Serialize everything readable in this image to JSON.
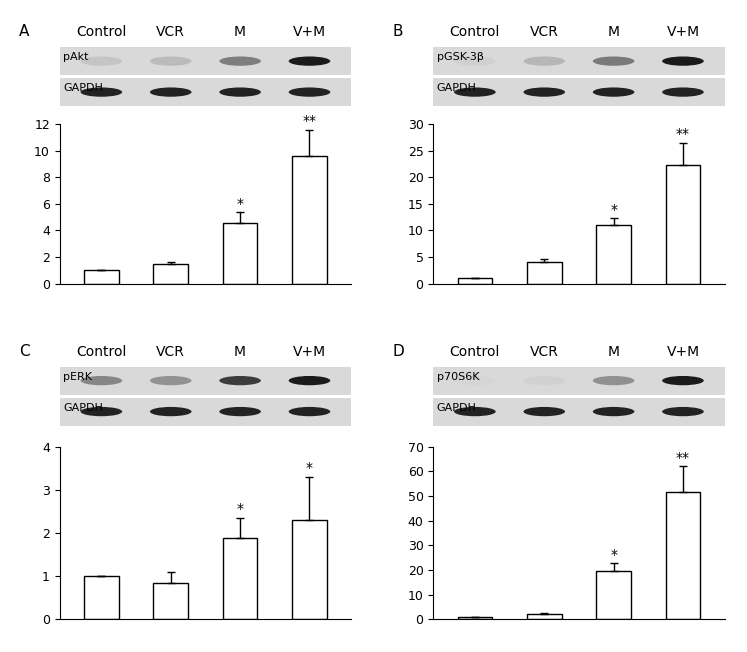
{
  "chart_data": [
    {
      "type": "bar",
      "panel_label": "A",
      "categories": [
        "Control",
        "VCR",
        "M",
        "V+M"
      ],
      "blot_labels": [
        "pAkt",
        "GAPDH"
      ],
      "values": [
        1.0,
        1.5,
        4.55,
        9.55
      ],
      "error": [
        0.0,
        0.1,
        0.8,
        2.0
      ],
      "significance": [
        null,
        null,
        "*",
        "**"
      ],
      "color": "#ffffff",
      "ylim": [
        0,
        12
      ],
      "yticks": [
        0,
        2,
        4,
        6,
        8,
        10,
        12
      ],
      "tick_labels": "y"
    },
    {
      "type": "bar",
      "panel_label": "B",
      "categories": [
        "Control",
        "VCR",
        "M",
        "V+M"
      ],
      "blot_labels": [
        "pGSK-3β",
        "GAPDH"
      ],
      "values": [
        1.0,
        4.0,
        11.0,
        22.2
      ],
      "error": [
        0.0,
        0.6,
        1.3,
        4.3
      ],
      "significance": [
        null,
        null,
        "*",
        "**"
      ],
      "color": "#ffffff",
      "ylim": [
        0,
        30
      ],
      "yticks": [
        0,
        5,
        10,
        15,
        20,
        25,
        30
      ],
      "tick_labels": "y"
    },
    {
      "type": "bar",
      "panel_label": "C",
      "categories": [
        "Control",
        "VCR",
        "M",
        "V+M"
      ],
      "blot_labels": [
        "pERK",
        "GAPDH"
      ],
      "values": [
        1.0,
        0.85,
        1.88,
        2.3
      ],
      "error": [
        0.0,
        0.25,
        0.47,
        1.0
      ],
      "significance": [
        null,
        null,
        "*",
        "*"
      ],
      "color": "#ffffff",
      "ylim": [
        0,
        4
      ],
      "yticks": [
        0,
        1,
        2,
        3,
        4
      ],
      "tick_labels": "y"
    },
    {
      "type": "bar",
      "panel_label": "D",
      "categories": [
        "Control",
        "VCR",
        "M",
        "V+M"
      ],
      "blot_labels": [
        "p70S6K",
        "GAPDH"
      ],
      "values": [
        1.0,
        2.2,
        19.5,
        51.5
      ],
      "error": [
        0.0,
        0.3,
        3.2,
        10.5
      ],
      "significance": [
        null,
        null,
        "*",
        "**"
      ],
      "color": "#ffffff",
      "ylim": [
        0,
        70
      ],
      "yticks": [
        0,
        10,
        20,
        30,
        40,
        50,
        60,
        70
      ],
      "tick_labels": "y"
    }
  ]
}
